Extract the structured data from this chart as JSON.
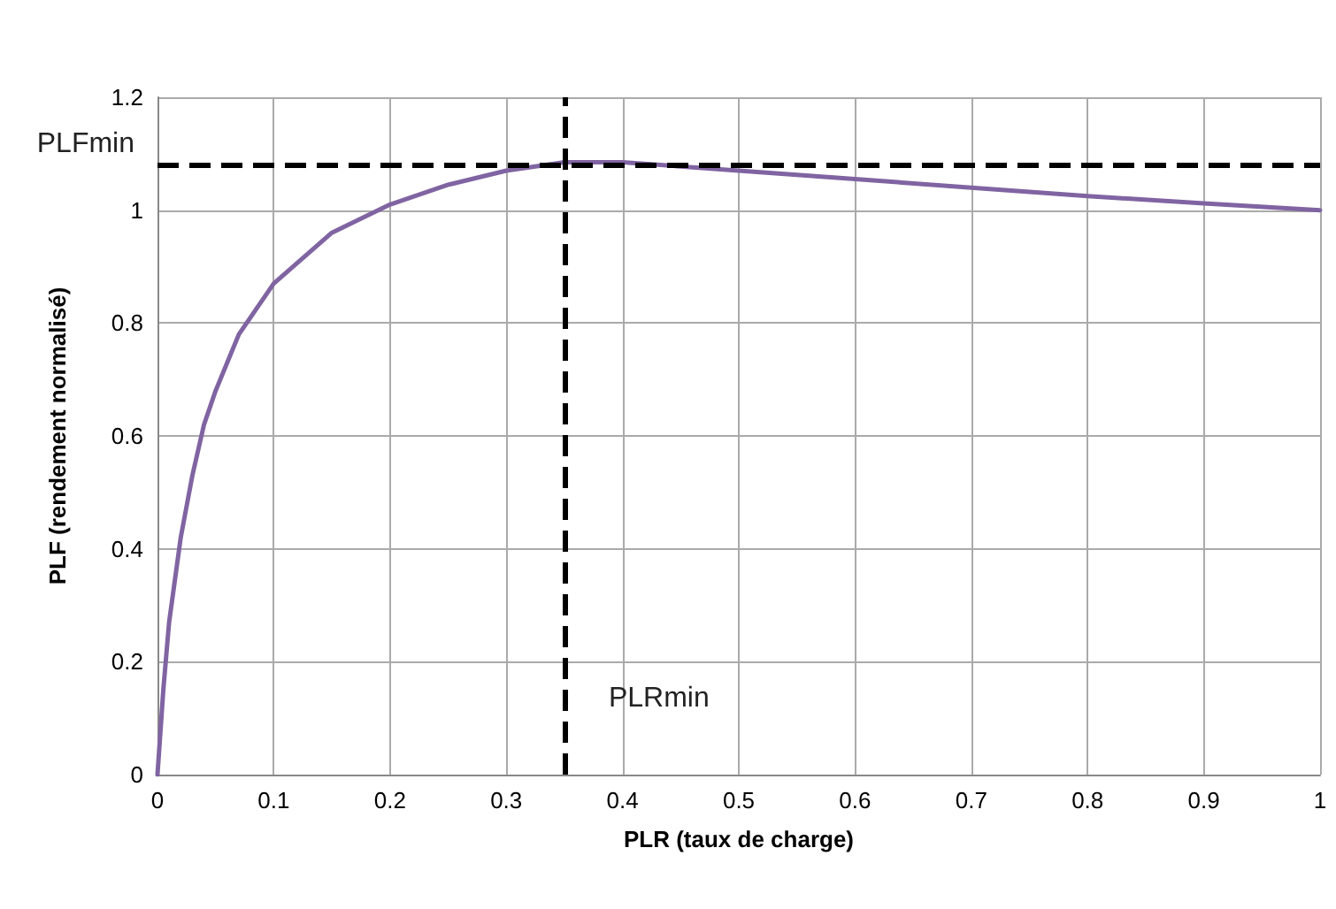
{
  "chart_data": {
    "type": "line",
    "xlabel": "PLR (taux de charge)",
    "ylabel": "PLF (rendement normalisé)",
    "x": [
      0,
      0.005,
      0.01,
      0.02,
      0.03,
      0.04,
      0.05,
      0.07,
      0.1,
      0.15,
      0.2,
      0.25,
      0.3,
      0.35,
      0.4,
      0.5,
      0.6,
      0.7,
      0.8,
      0.9,
      1
    ],
    "series": [
      {
        "color": "#8064a2",
        "values": [
          0,
          0.15,
          0.27,
          0.42,
          0.53,
          0.62,
          0.68,
          0.78,
          0.87,
          0.96,
          1.01,
          1.045,
          1.07,
          1.085,
          1.085,
          1.07,
          1.055,
          1.04,
          1.025,
          1.012,
          1.0
        ]
      }
    ],
    "xlim": [
      0,
      1
    ],
    "xticks": [
      0,
      0.1,
      0.2,
      0.3,
      0.4,
      0.5,
      0.6,
      0.7,
      0.8,
      0.9,
      1
    ],
    "ylim": [
      0,
      1.2
    ],
    "yticks": [
      0,
      0.2,
      0.4,
      0.6,
      0.8,
      1,
      1.2
    ],
    "ref_lines": [
      {
        "axis": "x",
        "value": 0.35,
        "label": "PLRmin",
        "color": "#000000",
        "line_style": "dashed"
      },
      {
        "axis": "y",
        "value": 1.085,
        "label": "PLFmin",
        "color": "#000000",
        "line_style": "dashed"
      }
    ],
    "grid": true,
    "marker": "none",
    "line_style": "solid"
  }
}
